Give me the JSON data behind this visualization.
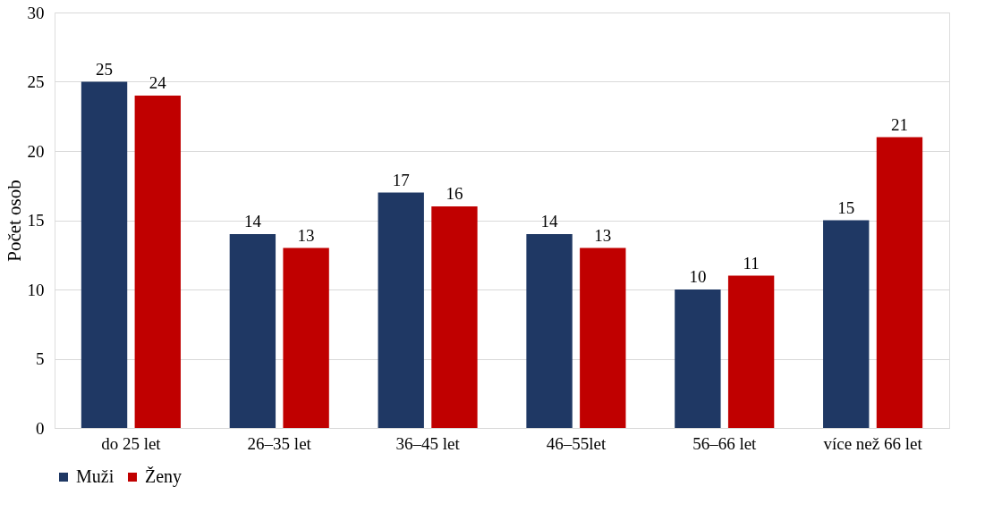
{
  "chart_data": {
    "type": "bar",
    "ylabel": "Počet osob",
    "categories": [
      "do 25 let",
      "26–35 let",
      "36–45 let",
      "46–55let",
      "56–66 let",
      "více než 66 let"
    ],
    "series": [
      {
        "name": "Muži",
        "color": "#1f3864",
        "values": [
          25,
          14,
          17,
          14,
          10,
          15
        ]
      },
      {
        "name": "Ženy",
        "color": "#c00000",
        "values": [
          24,
          13,
          16,
          13,
          11,
          21
        ]
      }
    ],
    "ylim": [
      0,
      30
    ],
    "yticks": [
      0,
      5,
      10,
      15,
      20,
      25,
      30
    ],
    "grid": "y",
    "legend": "bottom",
    "data_labels": true
  }
}
